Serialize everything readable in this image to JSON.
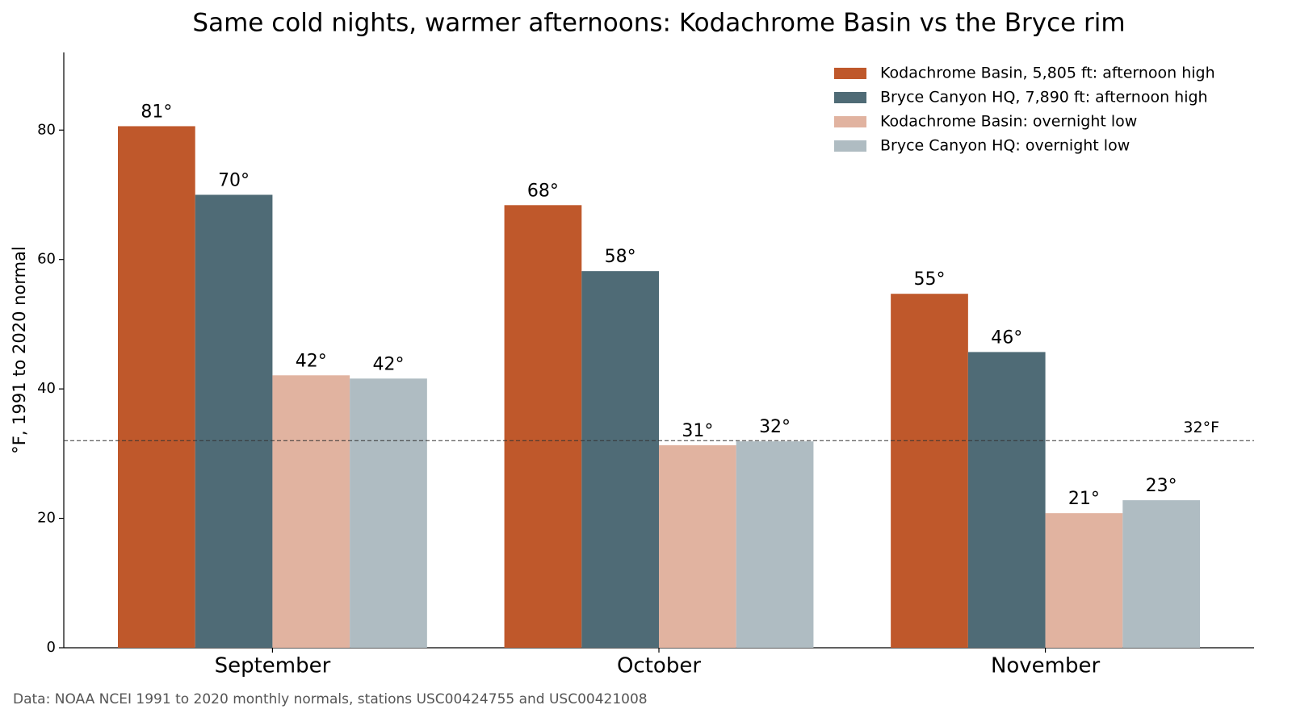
{
  "chart_data": {
    "type": "bar",
    "title": "Same cold nights, warmer afternoons: Kodachrome Basin vs the Bryce rim",
    "y_label": "°F, 1991 to 2020 normal",
    "source": "Data: NOAA NCEI 1991 to 2020 monthly normals, stations USC00424755 and USC00421008",
    "categories": [
      "September",
      "October",
      "November"
    ],
    "series": [
      {
        "name": "Kodachrome Basin, 5,805 ft: afternoon high",
        "color": "#bf582b",
        "values": [
          80.6,
          68.4,
          54.7
        ],
        "value_labels": [
          "81°",
          "68°",
          "55°"
        ]
      },
      {
        "name": "Bryce Canyon HQ, 7,890 ft: afternoon high",
        "color": "#4f6b76",
        "values": [
          70.0,
          58.2,
          45.7
        ],
        "value_labels": [
          "70°",
          "58°",
          "46°"
        ]
      },
      {
        "name": "Kodachrome Basin: overnight low",
        "color": "#e1b3a0",
        "values": [
          42.1,
          31.3,
          20.8
        ],
        "value_labels": [
          "42°",
          "31°",
          "21°"
        ]
      },
      {
        "name": "Bryce Canyon HQ: overnight low",
        "color": "#afbcc2",
        "values": [
          41.6,
          31.9,
          22.8
        ],
        "value_labels": [
          "42°",
          "32°",
          "23°"
        ]
      }
    ],
    "ylim": [
      0,
      92
    ],
    "yticks": [
      0,
      20,
      40,
      60,
      80
    ],
    "reference_line": {
      "value": 32,
      "label": "32°F"
    },
    "legend": "upper right",
    "grid": false
  }
}
